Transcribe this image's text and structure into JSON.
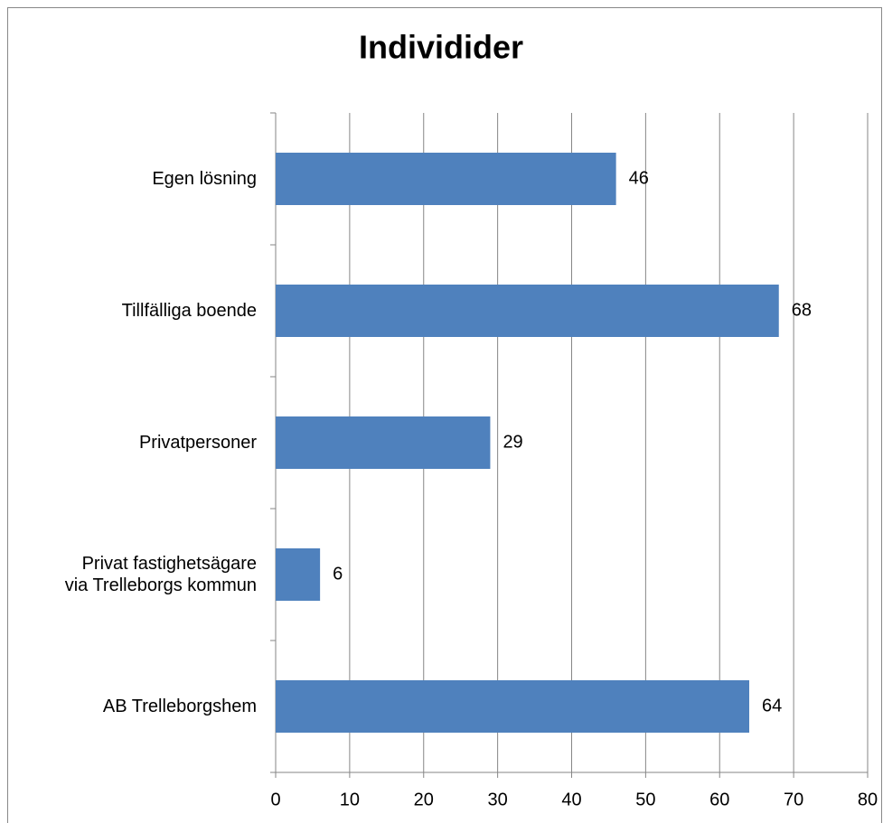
{
  "chart_data": {
    "type": "bar",
    "orientation": "horizontal",
    "title": "Individider",
    "categories": [
      "Egen lösning",
      "Tillfälliga boende",
      "Privatpersoner",
      "Privat fastighetsägare\nvia Trelleborgs kommun",
      "AB Trelleborgshem"
    ],
    "values": [
      46,
      68,
      29,
      6,
      64
    ],
    "color": "#4f81bd",
    "xlim": [
      0,
      80
    ],
    "xticks": [
      0,
      10,
      20,
      30,
      40,
      50,
      60,
      70,
      80
    ],
    "grid": true
  }
}
